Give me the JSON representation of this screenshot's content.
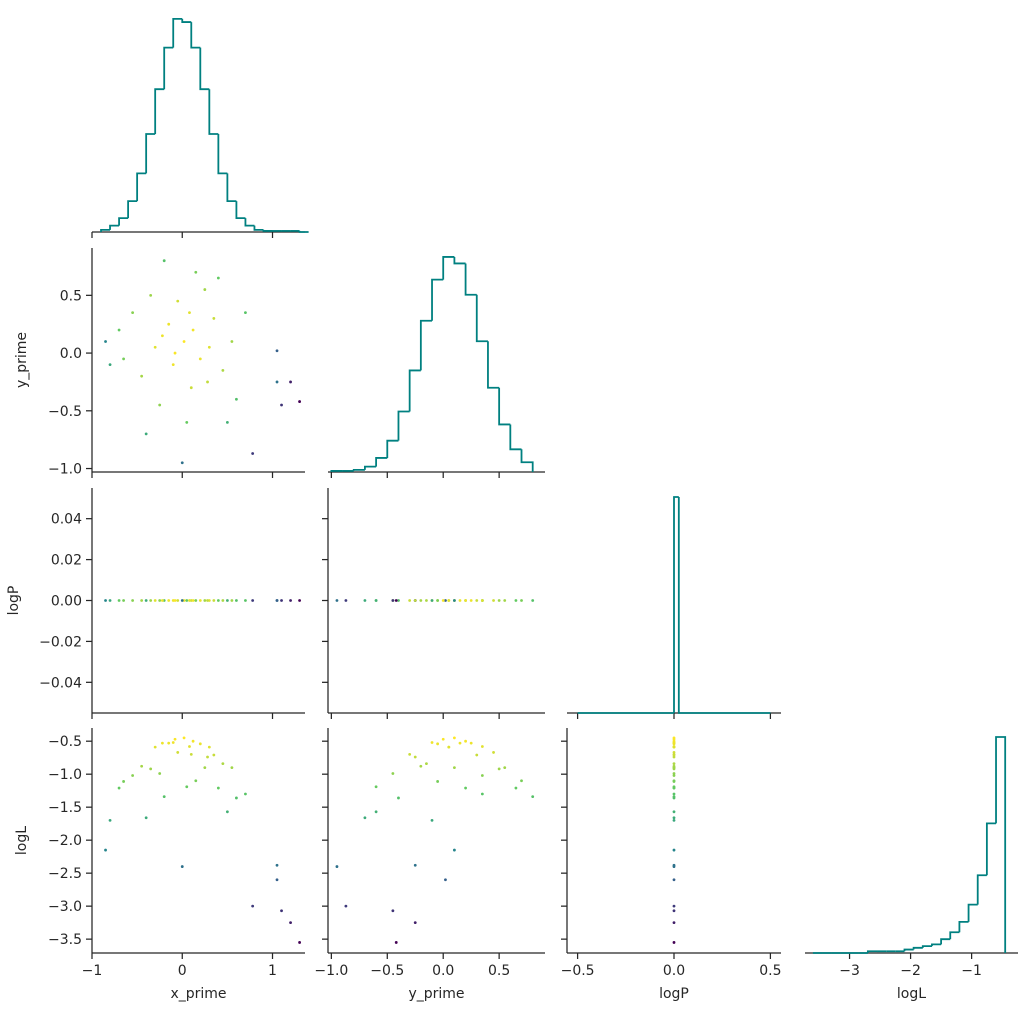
{
  "chart_data": {
    "type": "pairplot",
    "hue": "logL",
    "colormap": "viridis",
    "hist_color": "#008080",
    "variables": [
      {
        "name": "x_prime",
        "xlim": [
          -1.0,
          1.36
        ],
        "xticks": [
          {
            "value": -1,
            "label": "−1"
          },
          0,
          1
        ]
      },
      {
        "name": "y_prime",
        "xlim": [
          -1.03,
          0.91
        ],
        "ylim": [
          -1.03,
          0.91
        ],
        "xticks": [
          {
            "value": -1.0,
            "label": "−1.0"
          },
          {
            "value": -0.5,
            "label": "−0.5"
          },
          {
            "value": 0.0,
            "label": "0.0"
          },
          {
            "value": 0.5,
            "label": "0.5"
          }
        ],
        "yticks": [
          {
            "value": -1.0,
            "label": "−1.0"
          },
          {
            "value": -0.5,
            "label": "−0.5"
          },
          {
            "value": 0.0,
            "label": "0.0"
          },
          {
            "value": 0.5,
            "label": "0.5"
          }
        ]
      },
      {
        "name": "logP",
        "xlim": [
          -0.555,
          0.555
        ],
        "ylim": [
          -0.055,
          0.055
        ],
        "xticks": [
          {
            "value": -0.5,
            "label": "−0.5"
          },
          {
            "value": 0.0,
            "label": "0.0"
          },
          {
            "value": 0.5,
            "label": "0.5"
          }
        ],
        "yticks": [
          {
            "value": -0.04,
            "label": "−0.04"
          },
          {
            "value": -0.02,
            "label": "−0.02"
          },
          {
            "value": 0.0,
            "label": "0.00"
          },
          {
            "value": 0.02,
            "label": "0.02"
          },
          {
            "value": 0.04,
            "label": "0.04"
          }
        ]
      },
      {
        "name": "logL",
        "xlim": [
          -3.73,
          -0.24
        ],
        "ylim": [
          -3.71,
          -0.3
        ],
        "xticks": [
          {
            "value": -3,
            "label": "−3"
          },
          {
            "value": -2,
            "label": "−2"
          },
          {
            "value": -1,
            "label": "−1"
          }
        ],
        "yticks": [
          {
            "value": -3.5,
            "label": "−3.5"
          },
          {
            "value": -3.0,
            "label": "−3.0"
          },
          {
            "value": -2.5,
            "label": "−2.5"
          },
          {
            "value": -2.0,
            "label": "−2.0"
          },
          {
            "value": -1.5,
            "label": "−1.5"
          },
          {
            "value": -1.0,
            "label": "−1.0"
          },
          {
            "value": -0.5,
            "label": "−0.5"
          }
        ]
      }
    ],
    "samples": [
      [
        0.02,
        -0.15,
        0.2,
        -0.3,
        0.35,
        0.1,
        -0.05,
        0.45,
        -0.45,
        0.25,
        -0.25,
        0.55,
        -0.55,
        0.05,
        0.15,
        -0.1,
        0.3,
        -0.35,
        0.6,
        -0.65,
        0.7,
        -0.7,
        0.0,
        0.78,
        1.05,
        1.1,
        1.2,
        1.3,
        1.05,
        -0.85,
        -0.8,
        0.4,
        -0.2,
        0.5,
        -0.4,
        0.12,
        -0.08,
        0.08,
        -0.22,
        0.28
      ],
      [
        0.1,
        0.25,
        -0.05,
        0.05,
        0.3,
        -0.3,
        0.45,
        -0.15,
        -0.2,
        0.55,
        -0.45,
        0.1,
        0.35,
        -0.6,
        0.7,
        -0.1,
        0.05,
        0.5,
        -0.4,
        -0.05,
        0.35,
        0.2,
        -0.95,
        -0.87,
        -0.25,
        -0.45,
        -0.25,
        -0.42,
        0.02,
        0.1,
        -0.1,
        0.65,
        0.8,
        -0.6,
        -0.7,
        0.2,
        0.0,
        0.35,
        0.15,
        -0.25
      ],
      [
        0,
        0,
        0,
        0,
        0,
        0,
        0,
        0,
        0,
        0,
        0,
        0,
        0,
        0,
        0,
        0,
        0,
        0,
        0,
        0,
        0,
        0,
        0,
        0,
        0,
        0,
        0,
        0,
        0,
        0,
        0,
        0,
        0,
        0,
        0,
        0,
        0,
        0,
        0,
        0
      ],
      [
        -0.45,
        -0.53,
        -0.54,
        -0.59,
        -0.71,
        -0.7,
        -0.67,
        -0.84,
        -0.88,
        -0.9,
        -0.99,
        -0.9,
        -1.02,
        -1.19,
        -1.1,
        -0.52,
        -0.59,
        -0.92,
        -1.36,
        -1.11,
        -1.3,
        -1.21,
        -2.4,
        -3.0,
        -2.38,
        -3.07,
        -3.25,
        -3.55,
        -2.6,
        -2.15,
        -1.7,
        -1.21,
        -1.34,
        -1.57,
        -1.66,
        -0.5,
        -0.47,
        -0.58,
        -0.53,
        -0.74
      ]
    ],
    "histograms": [
      {
        "bins": [
          -0.9,
          -0.8,
          -0.7,
          -0.6,
          -0.5,
          -0.4,
          -0.3,
          -0.2,
          -0.1,
          0.0,
          0.1,
          0.2,
          0.3,
          0.4,
          0.5,
          0.6,
          0.7,
          0.8,
          0.9,
          1.0,
          1.1,
          1.2,
          1.3,
          1.4
        ],
        "counts": [
          2,
          6,
          13,
          29,
          55,
          92,
          134,
          173,
          200,
          197,
          173,
          134,
          92,
          55,
          29,
          13,
          6,
          2,
          1,
          1,
          1,
          1,
          0
        ]
      },
      {
        "bins": [
          -1.0,
          -0.9,
          -0.8,
          -0.7,
          -0.6,
          -0.5,
          -0.4,
          -0.3,
          -0.2,
          -0.1,
          0.0,
          0.1,
          0.2,
          0.3,
          0.4,
          0.5,
          0.6,
          0.7,
          0.8
        ],
        "counts": [
          1,
          1,
          2,
          5,
          13,
          29,
          56,
          94,
          140,
          178,
          199,
          193,
          164,
          121,
          78,
          44,
          21,
          9
        ]
      },
      {
        "bins": [
          -0.5,
          0.0,
          0.025,
          0.5
        ],
        "counts": [
          0,
          3000,
          0
        ]
      },
      {
        "bins": [
          -3.6,
          -3.45,
          -3.3,
          -3.15,
          -3.0,
          -2.85,
          -2.7,
          -2.55,
          -2.4,
          -2.25,
          -2.1,
          -1.95,
          -1.8,
          -1.65,
          -1.5,
          -1.35,
          -1.2,
          -1.05,
          -0.9,
          -0.75,
          -0.6,
          -0.45
        ],
        "counts": [
          0,
          0,
          0,
          0,
          0,
          0,
          1,
          1,
          1,
          1,
          2,
          3,
          4,
          5,
          8,
          12,
          18,
          28,
          45,
          75,
          125
        ]
      }
    ]
  }
}
